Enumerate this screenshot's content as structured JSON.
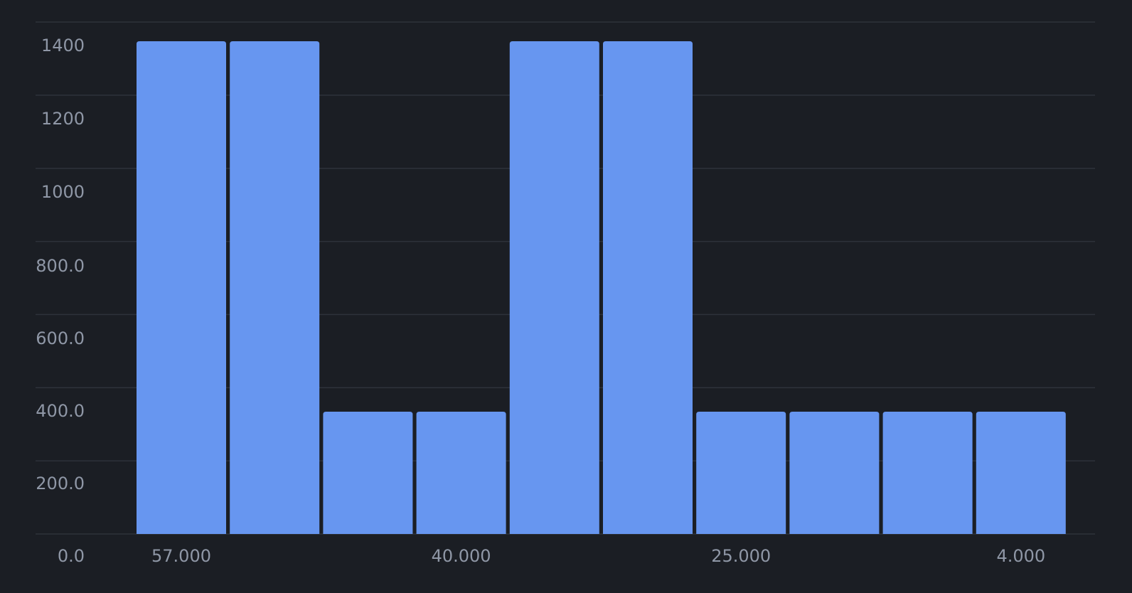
{
  "chart_data": {
    "type": "bar",
    "title": "",
    "xlabel": "",
    "ylabel": "",
    "categories": [
      "57.000",
      "",
      "",
      "40.000",
      "",
      "",
      "25.000",
      "",
      "",
      "4.000"
    ],
    "values": [
      1350,
      1350,
      335,
      335,
      1350,
      1350,
      335,
      335,
      335,
      335
    ],
    "ylim": [
      0,
      1400
    ],
    "y_ticks": [
      0,
      200,
      400,
      600,
      800,
      1000,
      1200,
      1400
    ],
    "y_tick_labels": [
      "0.0",
      "200.0",
      "400.0",
      "600.0",
      "800.0",
      "1000",
      "1200",
      "1400"
    ],
    "x_tick_labels": [
      {
        "index": 0,
        "label": "57.000"
      },
      {
        "index": 3,
        "label": "40.000"
      },
      {
        "index": 6,
        "label": "25.000"
      },
      {
        "index": 9,
        "label": "4.000"
      }
    ],
    "grid": true,
    "legend": "none",
    "colors": {
      "background": "#1b1e24",
      "grid": "#2e323a",
      "bar": "#6796f0",
      "text": "#8f97a6"
    }
  }
}
